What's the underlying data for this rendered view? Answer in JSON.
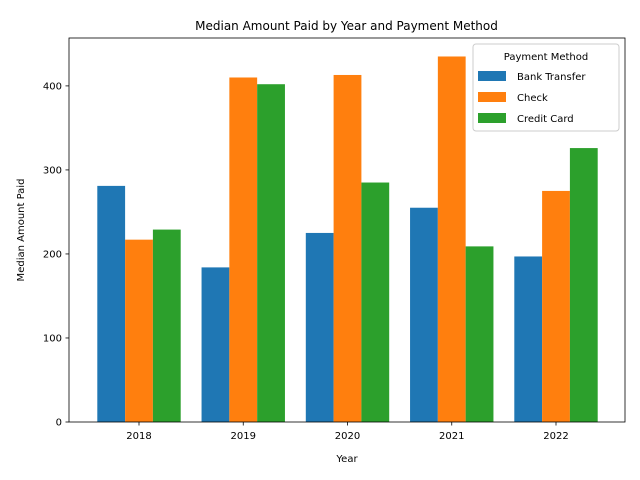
{
  "chart_data": {
    "type": "bar",
    "title": "Median Amount Paid by Year and Payment Method",
    "xlabel": "Year",
    "ylabel": "Median Amount Paid",
    "categories": [
      "2018",
      "2019",
      "2020",
      "2021",
      "2022"
    ],
    "series": [
      {
        "name": "Bank Transfer",
        "color": "#1f77b4",
        "values": [
          281,
          184,
          225,
          255,
          197
        ]
      },
      {
        "name": "Check",
        "color": "#ff7f0e",
        "values": [
          217,
          410,
          413,
          435,
          275
        ]
      },
      {
        "name": "Credit Card",
        "color": "#2ca02c",
        "values": [
          229,
          402,
          285,
          209,
          326
        ]
      }
    ],
    "ylim": [
      0,
      457
    ],
    "yticks": [
      0,
      100,
      200,
      300,
      400
    ],
    "legend": {
      "title": "Payment Method",
      "placement": "top-right"
    },
    "grid": false
  }
}
